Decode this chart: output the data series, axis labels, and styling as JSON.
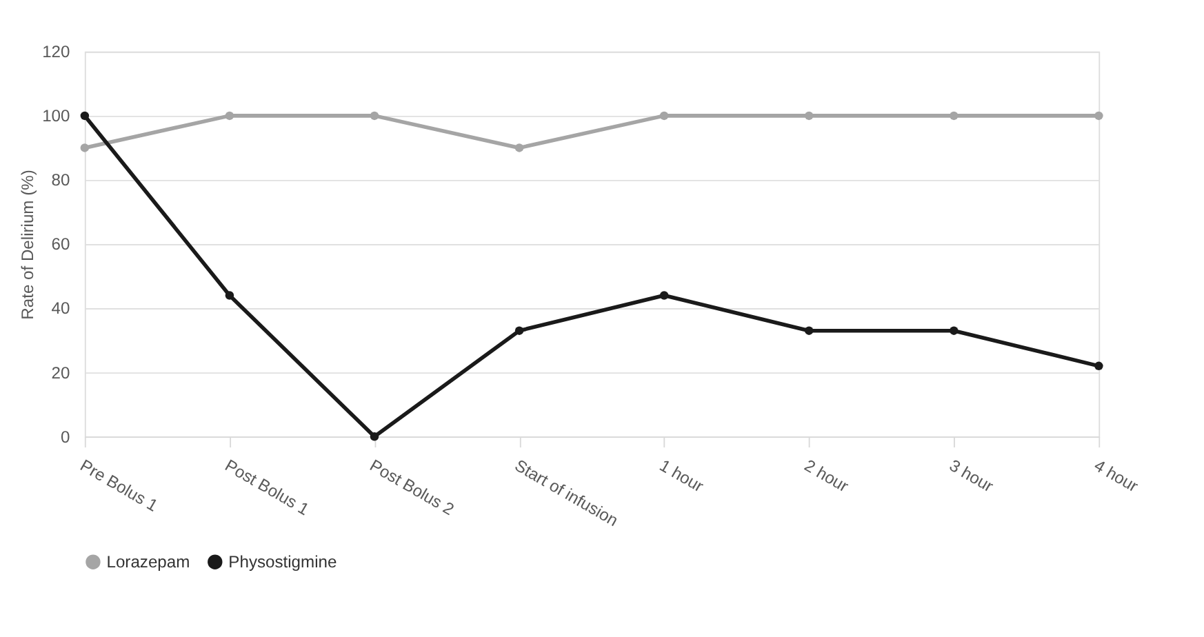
{
  "chart_data": {
    "type": "line",
    "ylabel": "Rate of Delirium (%)",
    "categories": [
      "Pre Bolus 1",
      "Post Bolus 1",
      "Post Bolus 2",
      "Start of infusion",
      "1 hour",
      "2 hour",
      "3 hour",
      "4 hour"
    ],
    "series": [
      {
        "name": "Lorazepam",
        "color": "#a5a5a5",
        "values": [
          90,
          100,
          100,
          90,
          100,
          100,
          100,
          100
        ]
      },
      {
        "name": "Physostigmine",
        "color": "#1a1a1a",
        "values": [
          100,
          44,
          0,
          33,
          44,
          33,
          33,
          22
        ]
      }
    ],
    "ylim": [
      0,
      120
    ],
    "yticks": [
      0,
      20,
      40,
      60,
      80,
      100,
      120
    ],
    "grid": "y",
    "legend": "bottom",
    "marker": "circle",
    "line_style": "solid"
  }
}
